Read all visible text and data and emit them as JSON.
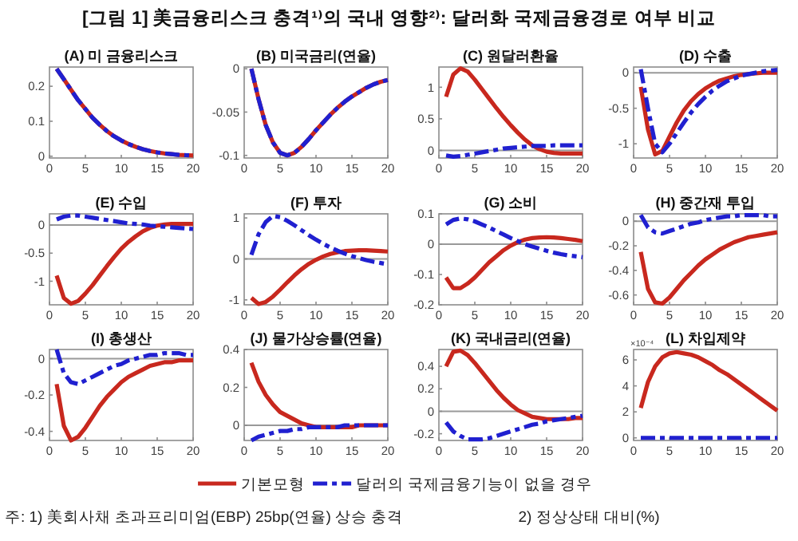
{
  "chart_data": [
    {
      "type": "line",
      "title": "(A) 미 금융리스크",
      "annotations": [
        "[그림 1] 美금융리스크 충격¹⁾의 국내 영향²⁾: 달러화 국제금융경로 여부 비교"
      ],
      "x": [
        1,
        2,
        3,
        4,
        5,
        6,
        7,
        8,
        9,
        10,
        11,
        12,
        13,
        14,
        15,
        16,
        17,
        18,
        19,
        20
      ],
      "xlim": [
        0,
        20
      ],
      "xticks": [
        0,
        5,
        10,
        15,
        20
      ],
      "ylim": [
        -0.005,
        0.255
      ],
      "yticks": [
        0,
        0.1,
        0.2
      ],
      "series": [
        {
          "color": "#c8281e",
          "line_style": "solid",
          "values": [
            0.25,
            0.22,
            0.19,
            0.16,
            0.135,
            0.11,
            0.09,
            0.072,
            0.057,
            0.045,
            0.035,
            0.027,
            0.02,
            0.015,
            0.011,
            0.008,
            0.006,
            0.004,
            0.003,
            0.002
          ]
        },
        {
          "color": "#2020d0",
          "line_style": "dashed",
          "values": [
            0.25,
            0.22,
            0.19,
            0.16,
            0.135,
            0.11,
            0.09,
            0.072,
            0.057,
            0.045,
            0.035,
            0.027,
            0.02,
            0.015,
            0.011,
            0.008,
            0.006,
            0.004,
            0.003,
            0.002
          ]
        }
      ]
    },
    {
      "type": "line",
      "title": "(B) 미국금리(연율)",
      "x": [
        1,
        2,
        3,
        4,
        5,
        6,
        7,
        8,
        9,
        10,
        11,
        12,
        13,
        14,
        15,
        16,
        17,
        18,
        19,
        20
      ],
      "xlim": [
        0,
        20
      ],
      "xticks": [
        0,
        5,
        10,
        15,
        20
      ],
      "ylim": [
        -0.103,
        0.002
      ],
      "yticks": [
        -0.1,
        -0.05,
        0
      ],
      "series": [
        {
          "color": "#c8281e",
          "line_style": "solid",
          "values": [
            0,
            -0.035,
            -0.065,
            -0.085,
            -0.097,
            -0.1,
            -0.097,
            -0.09,
            -0.081,
            -0.071,
            -0.062,
            -0.053,
            -0.045,
            -0.038,
            -0.032,
            -0.027,
            -0.022,
            -0.018,
            -0.015,
            -0.013
          ]
        },
        {
          "color": "#2020d0",
          "line_style": "dashed",
          "values": [
            0,
            -0.035,
            -0.065,
            -0.085,
            -0.097,
            -0.1,
            -0.097,
            -0.09,
            -0.081,
            -0.071,
            -0.062,
            -0.053,
            -0.045,
            -0.038,
            -0.032,
            -0.027,
            -0.022,
            -0.018,
            -0.015,
            -0.013
          ]
        }
      ]
    },
    {
      "type": "line",
      "title": "(C) 원달러환율",
      "x": [
        1,
        2,
        3,
        4,
        5,
        6,
        7,
        8,
        9,
        10,
        11,
        12,
        13,
        14,
        15,
        16,
        17,
        18,
        19,
        20
      ],
      "xlim": [
        0,
        20
      ],
      "xticks": [
        0,
        5,
        10,
        15,
        20
      ],
      "ylim": [
        -0.12,
        1.32
      ],
      "yticks": [
        0,
        0.5,
        1
      ],
      "ref_lines": [
        {
          "axis": "y",
          "value": 0,
          "color": "#999999"
        }
      ],
      "series": [
        {
          "color": "#c8281e",
          "line_style": "solid",
          "values": [
            0.85,
            1.2,
            1.3,
            1.25,
            1.12,
            0.97,
            0.82,
            0.67,
            0.53,
            0.4,
            0.28,
            0.17,
            0.08,
            0.02,
            -0.02,
            -0.04,
            -0.05,
            -0.05,
            -0.05,
            -0.05
          ]
        },
        {
          "color": "#2020d0",
          "line_style": "dashed",
          "values": [
            -0.08,
            -0.1,
            -0.09,
            -0.07,
            -0.05,
            -0.03,
            -0.01,
            0.01,
            0.03,
            0.04,
            0.05,
            0.06,
            0.07,
            0.07,
            0.07,
            0.08,
            0.08,
            0.08,
            0.08,
            0.08
          ]
        }
      ]
    },
    {
      "type": "line",
      "title": "(D) 수출",
      "x": [
        1,
        2,
        3,
        4,
        5,
        6,
        7,
        8,
        9,
        10,
        11,
        12,
        13,
        14,
        15,
        16,
        17,
        18,
        19,
        20
      ],
      "xlim": [
        0,
        20
      ],
      "xticks": [
        0,
        5,
        10,
        15,
        20
      ],
      "ylim": [
        -1.2,
        0.08
      ],
      "yticks": [
        -1,
        -0.5,
        0
      ],
      "ref_lines": [
        {
          "axis": "y",
          "value": 0,
          "color": "#999999"
        }
      ],
      "series": [
        {
          "color": "#c8281e",
          "line_style": "solid",
          "values": [
            -0.2,
            -0.8,
            -1.15,
            -1.1,
            -0.9,
            -0.7,
            -0.53,
            -0.4,
            -0.3,
            -0.22,
            -0.16,
            -0.11,
            -0.08,
            -0.05,
            -0.03,
            -0.02,
            -0.01,
            0,
            0,
            0
          ]
        },
        {
          "color": "#2020d0",
          "line_style": "dashed",
          "values": [
            0.05,
            -0.5,
            -1.0,
            -1.12,
            -1.0,
            -0.85,
            -0.7,
            -0.56,
            -0.44,
            -0.34,
            -0.25,
            -0.18,
            -0.12,
            -0.08,
            -0.04,
            -0.02,
            0,
            0.02,
            0.03,
            0.04
          ]
        }
      ]
    },
    {
      "type": "line",
      "title": "(E) 수입",
      "x": [
        1,
        2,
        3,
        4,
        5,
        6,
        7,
        8,
        9,
        10,
        11,
        12,
        13,
        14,
        15,
        16,
        17,
        18,
        19,
        20
      ],
      "xlim": [
        0,
        20
      ],
      "xticks": [
        0,
        5,
        10,
        15,
        20
      ],
      "ylim": [
        -1.42,
        0.2
      ],
      "yticks": [
        -1,
        -0.5,
        0
      ],
      "ref_lines": [
        {
          "axis": "y",
          "value": 0,
          "color": "#999999"
        }
      ],
      "series": [
        {
          "color": "#c8281e",
          "line_style": "solid",
          "values": [
            -0.9,
            -1.3,
            -1.4,
            -1.35,
            -1.22,
            -1.07,
            -0.9,
            -0.73,
            -0.57,
            -0.42,
            -0.3,
            -0.2,
            -0.11,
            -0.05,
            -0.01,
            0.01,
            0.02,
            0.02,
            0.02,
            0.02
          ]
        },
        {
          "color": "#2020d0",
          "line_style": "dashed",
          "values": [
            0.1,
            0.15,
            0.17,
            0.17,
            0.15,
            0.13,
            0.11,
            0.09,
            0.07,
            0.05,
            0.03,
            0.02,
            0.01,
            -0.01,
            -0.02,
            -0.03,
            -0.04,
            -0.05,
            -0.06,
            -0.07
          ]
        }
      ]
    },
    {
      "type": "line",
      "title": "(F) 투자",
      "x": [
        1,
        2,
        3,
        4,
        5,
        6,
        7,
        8,
        9,
        10,
        11,
        12,
        13,
        14,
        15,
        16,
        17,
        18,
        19,
        20
      ],
      "xlim": [
        0,
        20
      ],
      "xticks": [
        0,
        5,
        10,
        15,
        20
      ],
      "ylim": [
        -1.12,
        1.1
      ],
      "yticks": [
        -1,
        0,
        1
      ],
      "ref_lines": [
        {
          "axis": "y",
          "value": 0,
          "color": "#999999"
        }
      ],
      "series": [
        {
          "color": "#c8281e",
          "line_style": "solid",
          "values": [
            -0.95,
            -1.1,
            -1.05,
            -0.92,
            -0.75,
            -0.57,
            -0.4,
            -0.25,
            -0.12,
            -0.02,
            0.06,
            0.12,
            0.16,
            0.19,
            0.2,
            0.21,
            0.21,
            0.2,
            0.19,
            0.18
          ]
        },
        {
          "color": "#2020d0",
          "line_style": "dashed",
          "values": [
            0.1,
            0.6,
            0.9,
            1.05,
            1.02,
            0.93,
            0.82,
            0.7,
            0.58,
            0.47,
            0.37,
            0.28,
            0.2,
            0.13,
            0.07,
            0.02,
            -0.03,
            -0.07,
            -0.1,
            -0.13
          ]
        }
      ]
    },
    {
      "type": "line",
      "title": "(G) 소비",
      "x": [
        1,
        2,
        3,
        4,
        5,
        6,
        7,
        8,
        9,
        10,
        11,
        12,
        13,
        14,
        15,
        16,
        17,
        18,
        19,
        20
      ],
      "xlim": [
        0,
        20
      ],
      "xticks": [
        0,
        5,
        10,
        15,
        20
      ],
      "ylim": [
        -0.2,
        0.1
      ],
      "yticks": [
        -0.2,
        -0.1,
        0,
        0.1
      ],
      "ref_lines": [
        {
          "axis": "y",
          "value": 0,
          "color": "#999999"
        }
      ],
      "series": [
        {
          "color": "#c8281e",
          "line_style": "solid",
          "values": [
            -0.11,
            -0.145,
            -0.145,
            -0.13,
            -0.11,
            -0.085,
            -0.06,
            -0.04,
            -0.02,
            -0.005,
            0.007,
            0.015,
            0.02,
            0.022,
            0.023,
            0.022,
            0.02,
            0.017,
            0.014,
            0.01
          ]
        },
        {
          "color": "#2020d0",
          "line_style": "dashed",
          "values": [
            0.065,
            0.08,
            0.085,
            0.082,
            0.075,
            0.065,
            0.055,
            0.043,
            0.032,
            0.02,
            0.01,
            0,
            -0.008,
            -0.015,
            -0.022,
            -0.028,
            -0.033,
            -0.037,
            -0.04,
            -0.043
          ]
        }
      ]
    },
    {
      "type": "line",
      "title": "(H) 중간재 투입",
      "x": [
        1,
        2,
        3,
        4,
        5,
        6,
        7,
        8,
        9,
        10,
        11,
        12,
        13,
        14,
        15,
        16,
        17,
        18,
        19,
        20
      ],
      "xlim": [
        0,
        20
      ],
      "xticks": [
        0,
        5,
        10,
        15,
        20
      ],
      "ylim": [
        -0.68,
        0.06
      ],
      "yticks": [
        -0.6,
        -0.4,
        -0.2,
        0
      ],
      "ref_lines": [
        {
          "axis": "y",
          "value": 0,
          "color": "#999999"
        }
      ],
      "series": [
        {
          "color": "#c8281e",
          "line_style": "solid",
          "values": [
            -0.25,
            -0.55,
            -0.66,
            -0.67,
            -0.62,
            -0.55,
            -0.48,
            -0.42,
            -0.36,
            -0.31,
            -0.27,
            -0.23,
            -0.2,
            -0.17,
            -0.15,
            -0.13,
            -0.12,
            -0.11,
            -0.1,
            -0.09
          ]
        },
        {
          "color": "#2020d0",
          "line_style": "dashed",
          "values": [
            0.05,
            -0.05,
            -0.09,
            -0.1,
            -0.08,
            -0.06,
            -0.04,
            -0.02,
            -0.01,
            0.01,
            0.02,
            0.03,
            0.04,
            0.04,
            0.05,
            0.05,
            0.05,
            0.05,
            0.04,
            0.04
          ]
        }
      ]
    },
    {
      "type": "line",
      "title": "(I) 총생산",
      "x": [
        1,
        2,
        3,
        4,
        5,
        6,
        7,
        8,
        9,
        10,
        11,
        12,
        13,
        14,
        15,
        16,
        17,
        18,
        19,
        20
      ],
      "xlim": [
        0,
        20
      ],
      "xticks": [
        0,
        5,
        10,
        15,
        20
      ],
      "ylim": [
        -0.45,
        0.05
      ],
      "yticks": [
        -0.4,
        -0.2,
        0
      ],
      "ref_lines": [
        {
          "axis": "y",
          "value": 0,
          "color": "#999999"
        }
      ],
      "series": [
        {
          "color": "#c8281e",
          "line_style": "solid",
          "values": [
            -0.14,
            -0.37,
            -0.45,
            -0.43,
            -0.38,
            -0.32,
            -0.26,
            -0.21,
            -0.17,
            -0.13,
            -0.1,
            -0.08,
            -0.06,
            -0.04,
            -0.03,
            -0.02,
            -0.02,
            -0.01,
            -0.01,
            -0.01
          ]
        },
        {
          "color": "#2020d0",
          "line_style": "dashed",
          "values": [
            0.05,
            -0.08,
            -0.13,
            -0.14,
            -0.12,
            -0.1,
            -0.08,
            -0.06,
            -0.04,
            -0.03,
            -0.01,
            0,
            0.01,
            0.02,
            0.02,
            0.03,
            0.03,
            0.03,
            0.02,
            0.02
          ]
        }
      ]
    },
    {
      "type": "line",
      "title": "(J) 물가상승률(연율)",
      "x": [
        1,
        2,
        3,
        4,
        5,
        6,
        7,
        8,
        9,
        10,
        11,
        12,
        13,
        14,
        15,
        16,
        17,
        18,
        19,
        20
      ],
      "xlim": [
        0,
        20
      ],
      "xticks": [
        0,
        5,
        10,
        15,
        20
      ],
      "ylim": [
        -0.08,
        0.4
      ],
      "yticks": [
        0,
        0.2,
        0.4
      ],
      "ref_lines": [
        {
          "axis": "y",
          "value": 0,
          "color": "#999999"
        }
      ],
      "series": [
        {
          "color": "#c8281e",
          "line_style": "solid",
          "values": [
            0.33,
            0.23,
            0.16,
            0.11,
            0.07,
            0.05,
            0.03,
            0.01,
            0,
            -0.01,
            -0.01,
            -0.01,
            -0.01,
            -0.01,
            -0.01,
            0,
            0,
            0,
            0,
            0
          ]
        },
        {
          "color": "#2020d0",
          "line_style": "dashed",
          "values": [
            -0.08,
            -0.06,
            -0.05,
            -0.04,
            -0.03,
            -0.03,
            -0.02,
            -0.02,
            -0.01,
            -0.01,
            -0.01,
            -0.01,
            -0.01,
            0,
            0,
            0,
            0,
            0,
            0,
            0
          ]
        }
      ]
    },
    {
      "type": "line",
      "title": "(K) 국내금리(연율)",
      "x": [
        1,
        2,
        3,
        4,
        5,
        6,
        7,
        8,
        9,
        10,
        11,
        12,
        13,
        14,
        15,
        16,
        17,
        18,
        19,
        20
      ],
      "xlim": [
        0,
        20
      ],
      "xticks": [
        0,
        5,
        10,
        15,
        20
      ],
      "ylim": [
        -0.26,
        0.55
      ],
      "yticks": [
        -0.2,
        0,
        0.2,
        0.4
      ],
      "ref_lines": [
        {
          "axis": "y",
          "value": 0,
          "color": "#999999"
        }
      ],
      "series": [
        {
          "color": "#c8281e",
          "line_style": "solid",
          "values": [
            0.4,
            0.53,
            0.54,
            0.5,
            0.43,
            0.35,
            0.27,
            0.19,
            0.12,
            0.06,
            0.01,
            -0.02,
            -0.05,
            -0.06,
            -0.07,
            -0.07,
            -0.07,
            -0.07,
            -0.06,
            -0.06
          ]
        },
        {
          "color": "#2020d0",
          "line_style": "dashed",
          "values": [
            -0.1,
            -0.18,
            -0.22,
            -0.25,
            -0.25,
            -0.25,
            -0.24,
            -0.22,
            -0.2,
            -0.18,
            -0.16,
            -0.14,
            -0.12,
            -0.11,
            -0.09,
            -0.08,
            -0.07,
            -0.06,
            -0.05,
            -0.04
          ]
        }
      ]
    },
    {
      "type": "line",
      "title": "(L) 차입제약",
      "ylabel": "×10⁻⁴",
      "legend": "bottom",
      "annotations": [
        "주: 1) 美회사채 초과프리미엄(EBP) 25bp(연율) 상승 충격",
        "2) 정상상태 대비(%)"
      ],
      "x": [
        1,
        2,
        3,
        4,
        5,
        6,
        7,
        8,
        9,
        10,
        11,
        12,
        13,
        14,
        15,
        16,
        17,
        18,
        19,
        20
      ],
      "xlim": [
        0,
        20
      ],
      "xticks": [
        0,
        5,
        10,
        15,
        20
      ],
      "ylim": [
        -0.2,
        6.8
      ],
      "yticks": [
        0,
        2,
        4,
        6
      ],
      "series": [
        {
          "name": "기본모형",
          "color": "#c8281e",
          "line_style": "solid",
          "values": [
            2.3,
            4.3,
            5.5,
            6.2,
            6.5,
            6.6,
            6.5,
            6.4,
            6.2,
            5.9,
            5.6,
            5.2,
            4.9,
            4.5,
            4.1,
            3.7,
            3.3,
            2.9,
            2.5,
            2.1
          ]
        },
        {
          "name": "달러의 국제금융기능이 없을 경우",
          "color": "#2020d0",
          "line_style": "dashed",
          "values": [
            0,
            0,
            0,
            0,
            0,
            0,
            0,
            0,
            0,
            0,
            0,
            0,
            0,
            0,
            0,
            0,
            0,
            0,
            0,
            0
          ]
        }
      ]
    }
  ]
}
